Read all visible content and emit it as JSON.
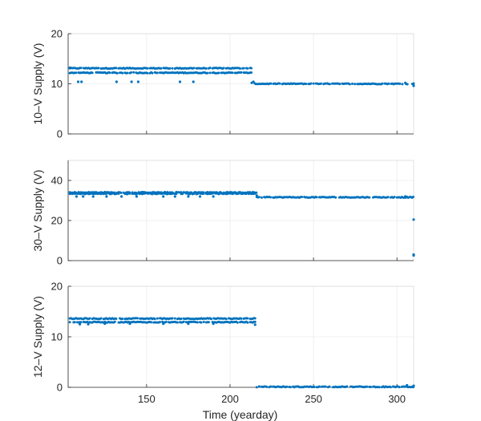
{
  "chart_data": [
    {
      "type": "scatter",
      "ylabel": "10–V Supply (V)",
      "xlabel": "",
      "xlim": [
        103,
        310
      ],
      "ylim": [
        0,
        20
      ],
      "xticks": [
        150,
        200,
        250,
        300
      ],
      "yticks": [
        0,
        10,
        20
      ],
      "show_xticklabels": false,
      "grid": true,
      "color": "#0072BD",
      "segments": [
        {
          "x0": 104,
          "x1": 213,
          "y": 13.1
        },
        {
          "x0": 104,
          "x1": 213,
          "y": 12.2
        },
        {
          "x0": 214,
          "x1": 310,
          "y": 10.0
        }
      ],
      "points": [
        {
          "x": 104,
          "y": 13.2
        },
        {
          "x": 109,
          "y": 10.4
        },
        {
          "x": 111,
          "y": 10.4
        },
        {
          "x": 132,
          "y": 10.4
        },
        {
          "x": 141,
          "y": 10.4
        },
        {
          "x": 145,
          "y": 10.4
        },
        {
          "x": 170,
          "y": 10.4
        },
        {
          "x": 178,
          "y": 10.4
        },
        {
          "x": 213,
          "y": 10.2
        },
        {
          "x": 214,
          "y": 10.4
        },
        {
          "x": 305,
          "y": 10.2
        },
        {
          "x": 310,
          "y": 9.6
        }
      ]
    },
    {
      "type": "scatter",
      "ylabel": "30–V Supply (V)",
      "xlabel": "",
      "xlim": [
        103,
        310
      ],
      "ylim": [
        0,
        50
      ],
      "xticks": [
        150,
        200,
        250,
        300
      ],
      "yticks": [
        0,
        20,
        40
      ],
      "show_xticklabels": false,
      "grid": true,
      "color": "#0072BD",
      "segments": [
        {
          "x0": 104,
          "x1": 216,
          "y": 34.0
        },
        {
          "x0": 104,
          "x1": 216,
          "y": 33.4
        },
        {
          "x0": 216,
          "x1": 310,
          "y": 31.6
        }
      ],
      "points": [
        {
          "x": 108,
          "y": 32.0
        },
        {
          "x": 112,
          "y": 32.0
        },
        {
          "x": 118,
          "y": 32.0
        },
        {
          "x": 126,
          "y": 32.0
        },
        {
          "x": 135,
          "y": 32.0
        },
        {
          "x": 144,
          "y": 32.0
        },
        {
          "x": 160,
          "y": 32.0
        },
        {
          "x": 167,
          "y": 32.0
        },
        {
          "x": 175,
          "y": 32.0
        },
        {
          "x": 182,
          "y": 32.0
        },
        {
          "x": 190,
          "y": 32.0
        },
        {
          "x": 216,
          "y": 32.5
        },
        {
          "x": 305,
          "y": 32.0
        },
        {
          "x": 310,
          "y": 20.5
        },
        {
          "x": 310,
          "y": 3.0
        },
        {
          "x": 310,
          "y": 2.6
        }
      ]
    },
    {
      "type": "scatter",
      "ylabel": "12–V Supply (V)",
      "xlabel": "Time (yearday)",
      "xlim": [
        103,
        310
      ],
      "ylim": [
        0,
        20
      ],
      "xticks": [
        150,
        200,
        250,
        300
      ],
      "yticks": [
        0,
        10,
        20
      ],
      "show_xticklabels": true,
      "grid": true,
      "color": "#0072BD",
      "segments": [
        {
          "x0": 104,
          "x1": 215,
          "y": 13.6
        },
        {
          "x0": 104,
          "x1": 215,
          "y": 12.9
        },
        {
          "x0": 216,
          "x1": 310,
          "y": 0.1
        }
      ],
      "points": [
        {
          "x": 110,
          "y": 12.5
        },
        {
          "x": 115,
          "y": 12.5
        },
        {
          "x": 125,
          "y": 12.6
        },
        {
          "x": 140,
          "y": 12.6
        },
        {
          "x": 160,
          "y": 12.6
        },
        {
          "x": 175,
          "y": 12.6
        },
        {
          "x": 190,
          "y": 12.6
        },
        {
          "x": 215,
          "y": 12.4
        },
        {
          "x": 306,
          "y": 0.4
        },
        {
          "x": 310,
          "y": 0.3
        }
      ]
    }
  ]
}
